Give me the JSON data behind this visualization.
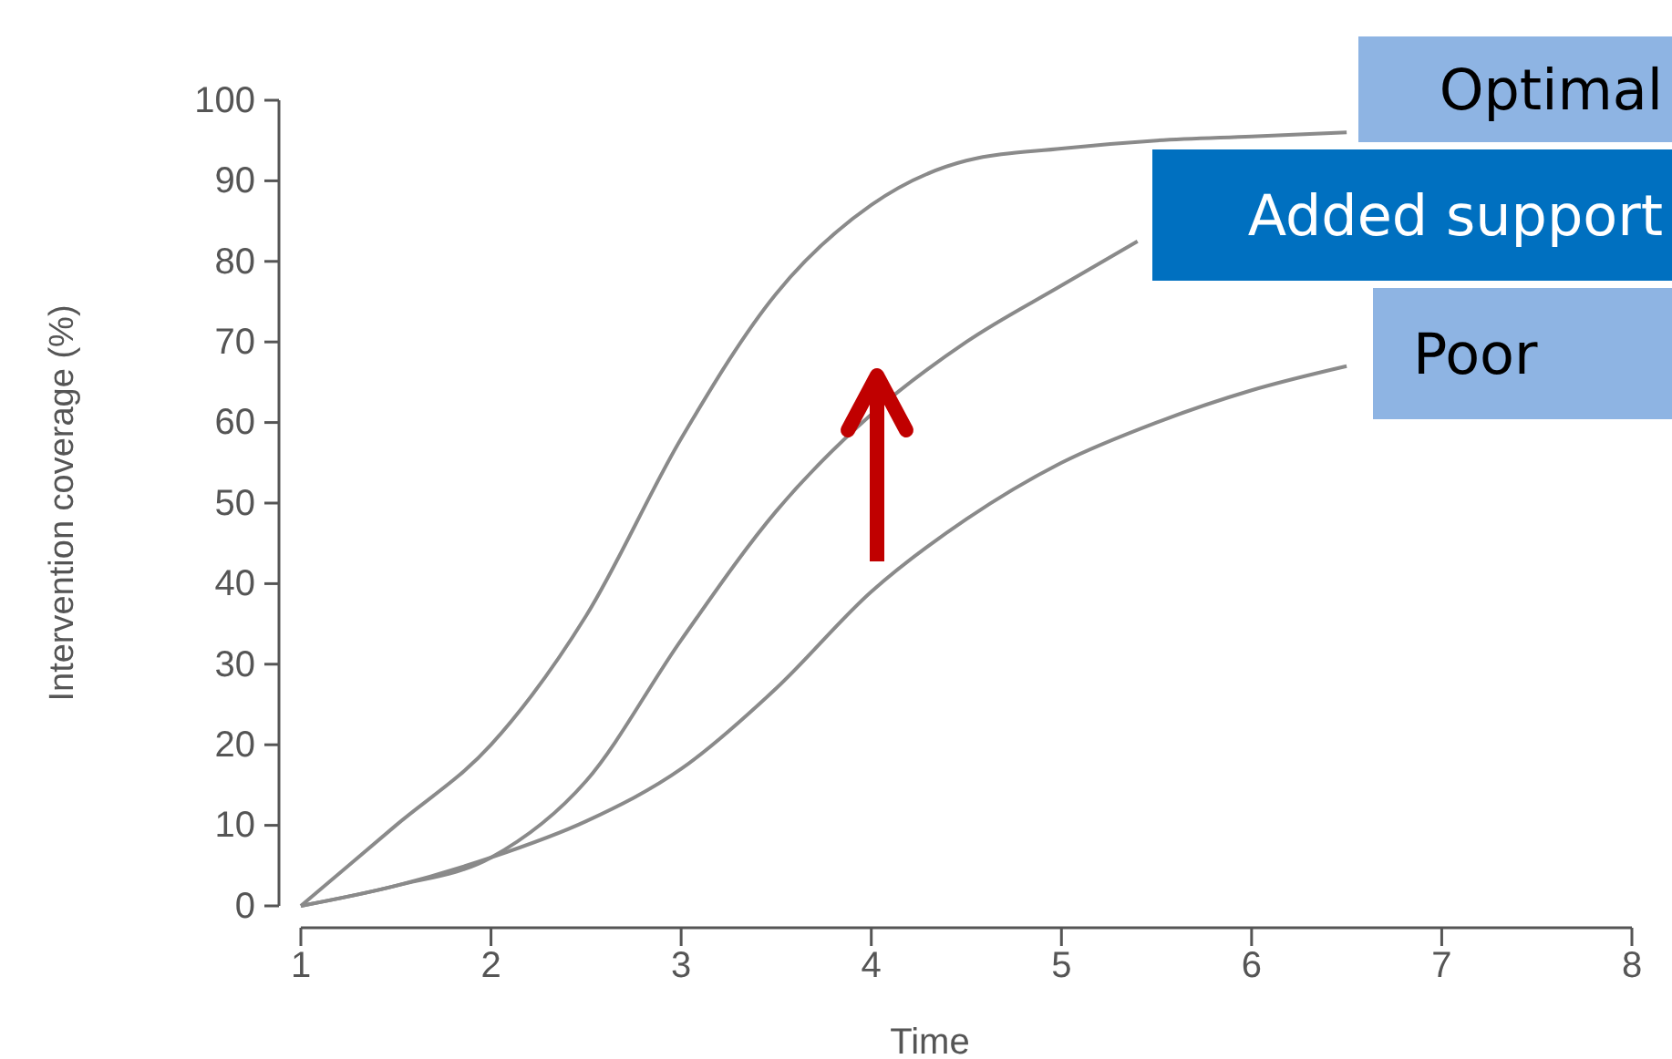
{
  "chart_data": {
    "type": "line",
    "xlabel": "Time",
    "ylabel": "Intervention coverage (%)",
    "xlim": [
      1,
      8
    ],
    "xticks": [
      1,
      2,
      3,
      4,
      5,
      6,
      7,
      8
    ],
    "ylim": [
      0,
      100
    ],
    "yticks": [
      0,
      10,
      20,
      30,
      40,
      50,
      60,
      70,
      80,
      90,
      100
    ],
    "grid": false,
    "marker": "none",
    "line_style": "solid",
    "series": [
      {
        "name": "Optimal",
        "color": "#8a8a8a",
        "x": [
          1,
          1.5,
          2,
          2.5,
          3,
          3.5,
          4,
          4.5,
          5,
          5.5,
          6,
          6.5
        ],
        "values": [
          0,
          10,
          20,
          36,
          58,
          76,
          87,
          92.5,
          94,
          95,
          95.5,
          96
        ]
      },
      {
        "name": "Added support",
        "color": "#8a8a8a",
        "x": [
          1,
          1.5,
          2,
          2.5,
          3,
          3.5,
          4,
          4.5,
          5,
          5.4
        ],
        "values": [
          0,
          2.5,
          6,
          15.5,
          33,
          49,
          61,
          70,
          77,
          82.5
        ]
      },
      {
        "name": "Poor",
        "color": "#8a8a8a",
        "x": [
          1,
          1.5,
          2,
          2.5,
          3,
          3.5,
          4,
          4.5,
          5,
          5.5,
          6,
          6.5
        ],
        "values": [
          0,
          2.5,
          6,
          10.5,
          17,
          27,
          39,
          48,
          55,
          60,
          64,
          67
        ]
      }
    ]
  }
}
